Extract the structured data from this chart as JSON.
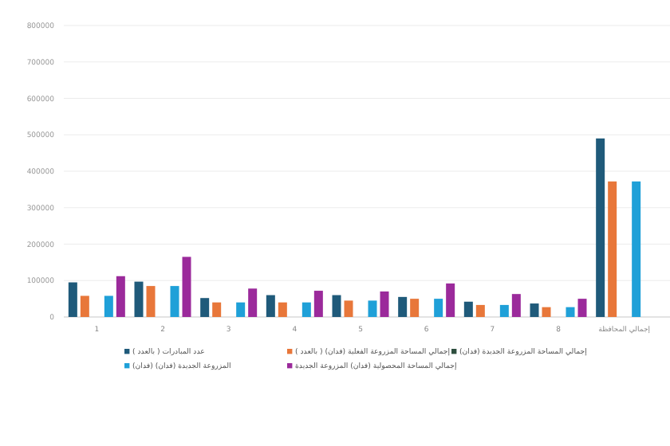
{
  "chart_data": {
    "type": "bar",
    "categories": [
      "1",
      "2",
      "3",
      "4",
      "5",
      "6",
      "7",
      "8",
      "إجمالي المحافظة"
    ],
    "series": [
      {
        "name": "عدد المبادرات ( بالعدد )",
        "color": "#1f5a7a",
        "values": [
          95000,
          97000,
          52000,
          60000,
          60000,
          55000,
          42000,
          37000,
          490000
        ]
      },
      {
        "name": "إجمالي المساحة المزروعة الفعلية (فدان) ( بالعدد )",
        "color": "#e8773a",
        "values": [
          58000,
          85000,
          40000,
          40000,
          45000,
          50000,
          33000,
          27000,
          372000
        ]
      },
      {
        "name": "إجمالي المساحة المزروعة الجديدة (فدان)",
        "color": "#2e4f3f",
        "values": [
          0,
          0,
          0,
          0,
          0,
          0,
          0,
          0,
          0
        ]
      },
      {
        "name": "(فدان) المزروعة الجديدة (فدان)",
        "color": "#1fa0d8",
        "values": [
          58000,
          85000,
          40000,
          40000,
          45000,
          50000,
          33000,
          27000,
          372000
        ]
      },
      {
        "name": "إجمالي المساحة المحصولية (فدان) المزروعة الجديدة",
        "color": "#9b2a9b",
        "values": [
          112000,
          165000,
          78000,
          72000,
          70000,
          92000,
          63000,
          50000,
          null
        ]
      }
    ],
    "ylim": [
      0,
      800000
    ],
    "yticks": [
      0,
      100000,
      200000,
      300000,
      400000,
      500000,
      600000,
      700000,
      800000
    ],
    "grid": "y",
    "legend": "bottom"
  }
}
